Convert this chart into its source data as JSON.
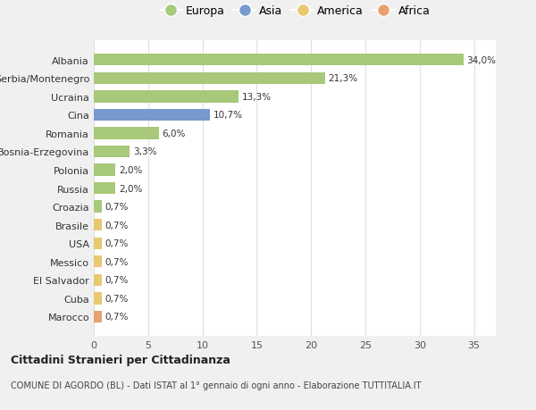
{
  "categories": [
    "Marocco",
    "Cuba",
    "El Salvador",
    "Messico",
    "USA",
    "Brasile",
    "Croazia",
    "Russia",
    "Polonia",
    "Bosnia-Erzegovina",
    "Romania",
    "Cina",
    "Ucraina",
    "Serbia/Montenegro",
    "Albania"
  ],
  "values": [
    0.7,
    0.7,
    0.7,
    0.7,
    0.7,
    0.7,
    0.7,
    2.0,
    2.0,
    3.3,
    6.0,
    10.7,
    13.3,
    21.3,
    34.0
  ],
  "labels": [
    "0,7%",
    "0,7%",
    "0,7%",
    "0,7%",
    "0,7%",
    "0,7%",
    "0,7%",
    "2,0%",
    "2,0%",
    "3,3%",
    "6,0%",
    "10,7%",
    "13,3%",
    "21,3%",
    "34,0%"
  ],
  "colors": [
    "#e8a070",
    "#e8c870",
    "#e8c870",
    "#e8c870",
    "#e8c870",
    "#e8c870",
    "#a8c87a",
    "#a8c87a",
    "#a8c87a",
    "#a8c87a",
    "#a8c87a",
    "#7799cc",
    "#a8c87a",
    "#a8c87a",
    "#a8c87a"
  ],
  "legend_labels": [
    "Europa",
    "Asia",
    "America",
    "Africa"
  ],
  "legend_colors": [
    "#a8c87a",
    "#7799cc",
    "#e8c870",
    "#e8a070"
  ],
  "title": "Cittadini Stranieri per Cittadinanza",
  "subtitle": "COMUNE DI AGORDO (BL) - Dati ISTAT al 1° gennaio di ogni anno - Elaborazione TUTTITALIA.IT",
  "xlim": [
    0,
    37
  ],
  "xticks": [
    0,
    5,
    10,
    15,
    20,
    25,
    30,
    35
  ],
  "bg_color": "#f0f0f0",
  "plot_bg_color": "#ffffff",
  "grid_color": "#e0e0e0",
  "bar_height": 0.65
}
